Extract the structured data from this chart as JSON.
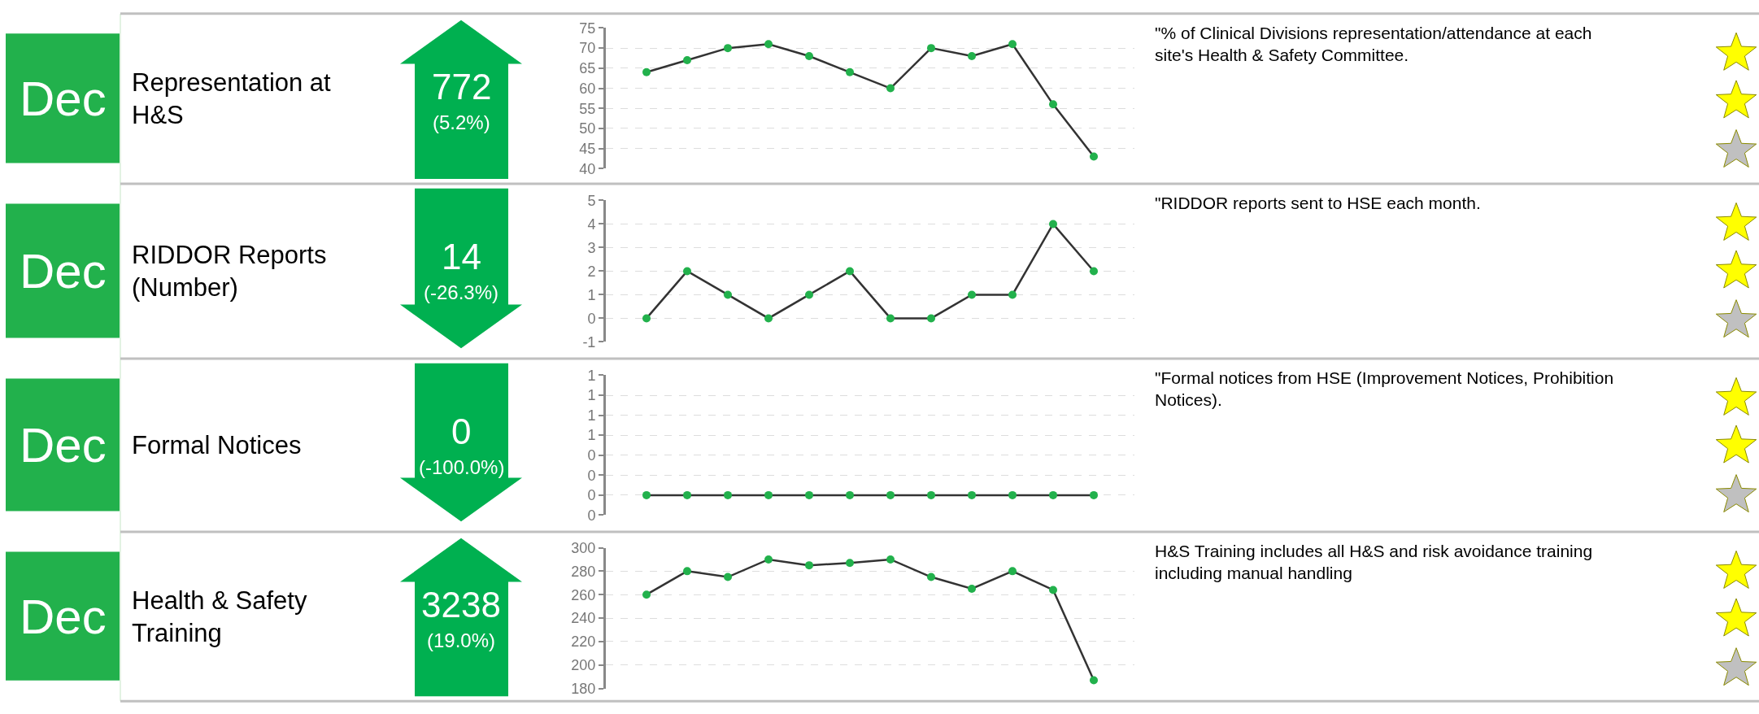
{
  "chart_data": [
    {
      "type": "line",
      "annotations": [
        "Dec",
        "Representation at H&S",
        "772",
        "(5.2%)",
        "\"% of Clinical Divisions representation/attendance at each site's Health & Safety Committee."
      ],
      "categories": [
        null,
        null,
        null,
        null,
        null,
        null,
        null,
        null,
        null,
        null,
        null,
        null
      ],
      "series": [
        {
          "color": "#333333",
          "colors": [
            "#22b14c",
            "#22b14c",
            "#22b14c",
            "#22b14c",
            "#22b14c",
            "#22b14c",
            "#22b14c",
            "#22b14c",
            "#22b14c",
            "#22b14c",
            "#22b14c",
            "#22b14c"
          ],
          "values": [
            64,
            67,
            70,
            71,
            68,
            64,
            60,
            70,
            68,
            71,
            56,
            43
          ]
        }
      ],
      "ylim": [
        40,
        75
      ],
      "yticks": [
        40,
        45,
        50,
        55,
        60,
        65,
        70,
        75
      ],
      "grid": "y",
      "marker": "circle",
      "line_style": "solid",
      "tick_labels": "y"
    },
    {
      "type": "line",
      "annotations": [
        "Dec",
        "RIDDOR Reports (Number)",
        "14",
        "(-26.3%)",
        "\"RIDDOR reports sent to HSE each month."
      ],
      "categories": [
        null,
        null,
        null,
        null,
        null,
        null,
        null,
        null,
        null,
        null,
        null,
        null
      ],
      "series": [
        {
          "color": "#333333",
          "colors": [
            "#22b14c",
            "#22b14c",
            "#22b14c",
            "#22b14c",
            "#22b14c",
            "#22b14c",
            "#22b14c",
            "#22b14c",
            "#22b14c",
            "#22b14c",
            "#22b14c",
            "#22b14c"
          ],
          "values": [
            0,
            2,
            1,
            0,
            1,
            2,
            0,
            0,
            1,
            1,
            4,
            2
          ]
        }
      ],
      "ylim": [
        -1,
        5
      ],
      "yticks": [
        -1,
        0,
        1,
        2,
        3,
        4,
        5
      ],
      "grid": "y",
      "marker": "circle",
      "line_style": "solid",
      "tick_labels": "y"
    },
    {
      "type": "line",
      "annotations": [
        "Dec",
        "Formal Notices",
        "0",
        "(-100.0%)",
        "\"Formal notices from HSE (Improvement Notices, Prohibition Notices)."
      ],
      "categories": [
        null,
        null,
        null,
        null,
        null,
        null,
        null,
        null,
        null,
        null,
        null,
        null
      ],
      "series": [
        {
          "color": "#333333",
          "colors": [
            "#22b14c",
            "#22b14c",
            "#22b14c",
            "#22b14c",
            "#22b14c",
            "#22b14c",
            "#22b14c",
            "#22b14c",
            "#22b14c",
            "#22b14c",
            "#22b14c",
            "#22b14c"
          ],
          "values": [
            0,
            0,
            0,
            0,
            0,
            0,
            0,
            0,
            0,
            0,
            0,
            0
          ]
        }
      ],
      "ylim": [
        -0.2,
        1.2
      ],
      "yticks": [
        {
          "value": -0.2,
          "label": "0"
        },
        {
          "value": 0,
          "label": "0"
        },
        {
          "value": 0.2,
          "label": "0"
        },
        {
          "value": 0.4,
          "label": "0"
        },
        {
          "value": 0.6,
          "label": "1"
        },
        {
          "value": 0.8,
          "label": "1"
        },
        {
          "value": 1.0,
          "label": "1"
        },
        {
          "value": 1.2,
          "label": "1"
        }
      ],
      "grid": "y",
      "marker": "circle",
      "line_style": "solid",
      "tick_labels": "y"
    },
    {
      "type": "line",
      "annotations": [
        "Dec",
        "Health & Safety Training",
        "3238",
        "(19.0%)",
        "H&S Training includes all H&S and risk avoidance training including manual handling"
      ],
      "categories": [
        null,
        null,
        null,
        null,
        null,
        null,
        null,
        null,
        null,
        null,
        null,
        null
      ],
      "series": [
        {
          "color": "#333333",
          "colors": [
            "#22b14c",
            "#22b14c",
            "#22b14c",
            "#22b14c",
            "#22b14c",
            "#22b14c",
            "#22b14c",
            "#22b14c",
            "#22b14c",
            "#22b14c",
            "#22b14c",
            "#22b14c"
          ],
          "values": [
            260,
            280,
            275,
            290,
            285,
            287,
            290,
            275,
            265,
            280,
            264,
            187
          ]
        }
      ],
      "ylim": [
        180,
        300
      ],
      "yticks": [
        180,
        200,
        220,
        240,
        260,
        280,
        300
      ],
      "grid": "y",
      "marker": "circle",
      "line_style": "solid",
      "tick_labels": "y"
    }
  ]
}
